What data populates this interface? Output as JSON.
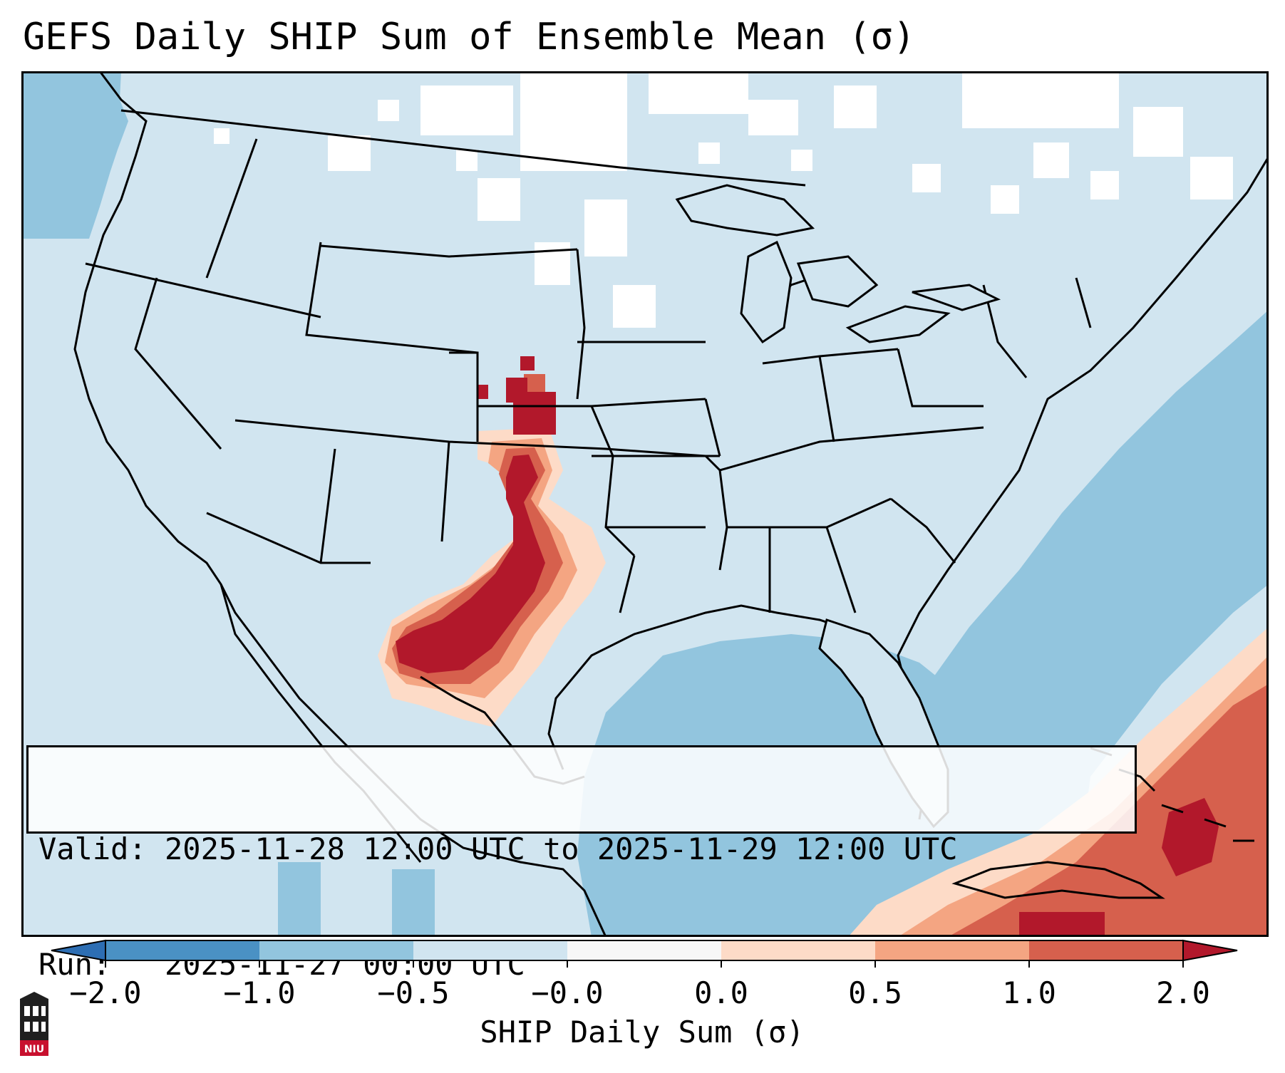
{
  "title": "GEFS Daily SHIP Sum of Ensemble Mean (σ)",
  "info": {
    "valid_line": "Valid: 2025-11-28 12:00 UTC to 2025-11-29 12:00 UTC",
    "run_line": "Run:   2025-11-27 00:00 UTC"
  },
  "colorbar": {
    "label": "SHIP Daily Sum (σ)",
    "tick_labels": [
      "−2.0",
      "−1.0",
      "−0.5",
      "−0.0",
      "0.0",
      "0.5",
      "1.0",
      "2.0"
    ],
    "segment_colors": [
      "#4a91c4",
      "#92c5de",
      "#d1e5f0",
      "#f7f7f7",
      "#fddbc7",
      "#f4a582",
      "#d6604d"
    ],
    "under_color": "#2d6eb3",
    "over_color": "#b2182b"
  },
  "map": {
    "colors": {
      "ocean_low": "#92c5de",
      "land_background": "#d1e5f0",
      "near_zero": "#ffffff",
      "light_red": "#fddbc7",
      "medium_red": "#f4a582",
      "red": "#d6604d",
      "dark_red": "#b2182b",
      "outline": "#000000"
    }
  },
  "logo": {
    "text": "NIU",
    "icon": "niu-logo-icon"
  }
}
